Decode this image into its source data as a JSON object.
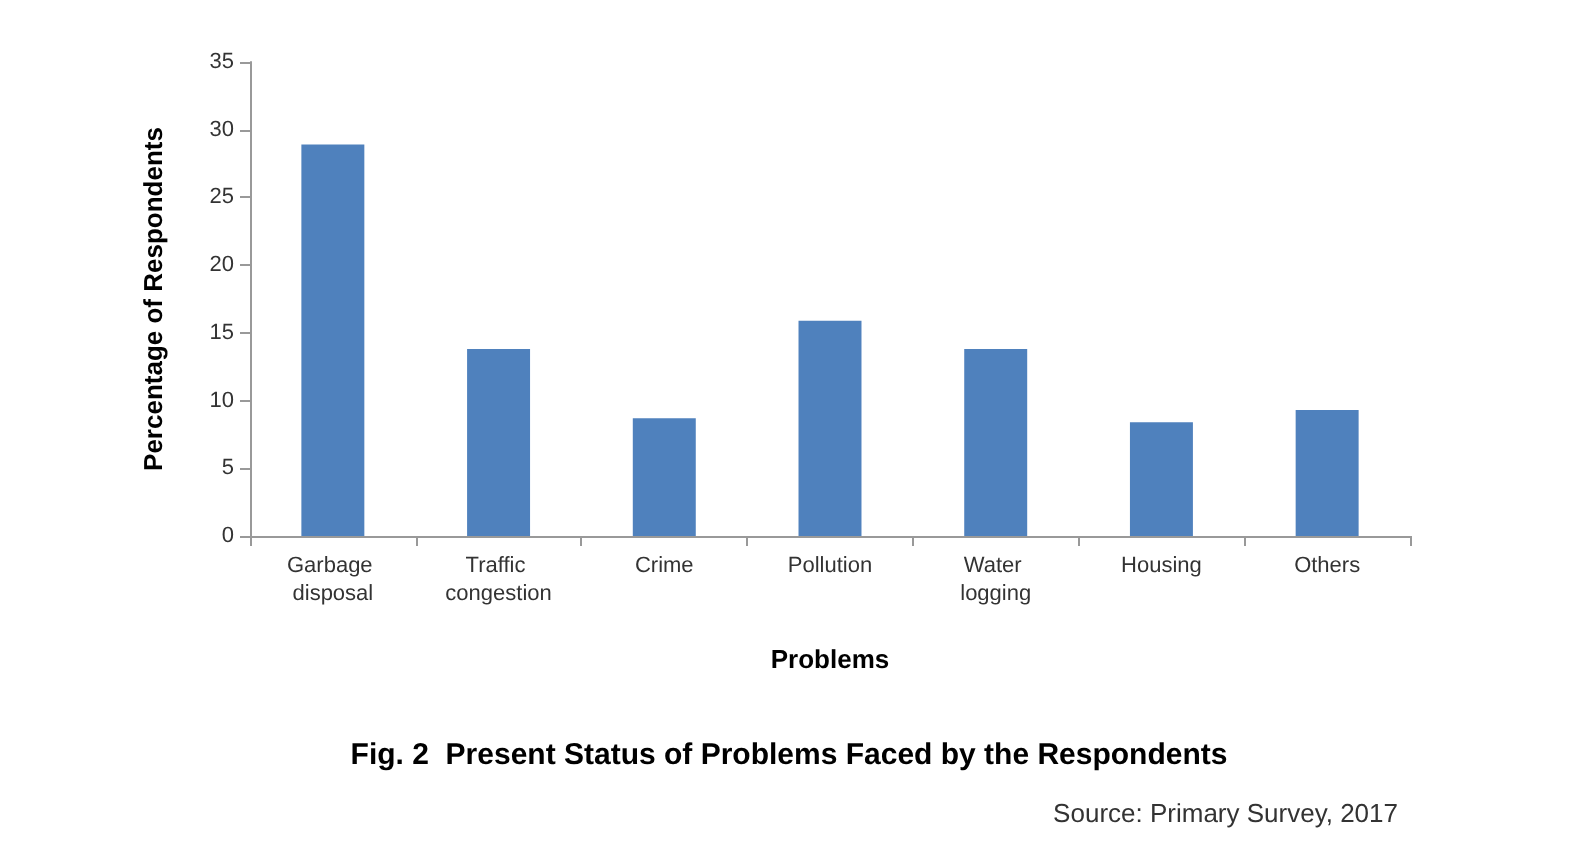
{
  "chart_data": {
    "type": "bar",
    "title": "Fig. 2  Present Status of Problems Faced by the Respondents",
    "xlabel": "Problems",
    "ylabel": "Percentage of Respondents",
    "categories": [
      "Garbage disposal",
      "Traffic congestion",
      "Crime",
      "Pollution",
      "Water logging",
      "Housing",
      "Others"
    ],
    "values": [
      28.9,
      13.8,
      8.7,
      15.9,
      13.8,
      8.4,
      9.3
    ],
    "color": "#4f81bd",
    "ylim": [
      0,
      35
    ],
    "yticks": [
      0,
      5,
      10,
      15,
      20,
      25,
      30,
      35
    ],
    "grid": false,
    "annotations": [
      "Source: Primary Survey, 2017"
    ]
  }
}
